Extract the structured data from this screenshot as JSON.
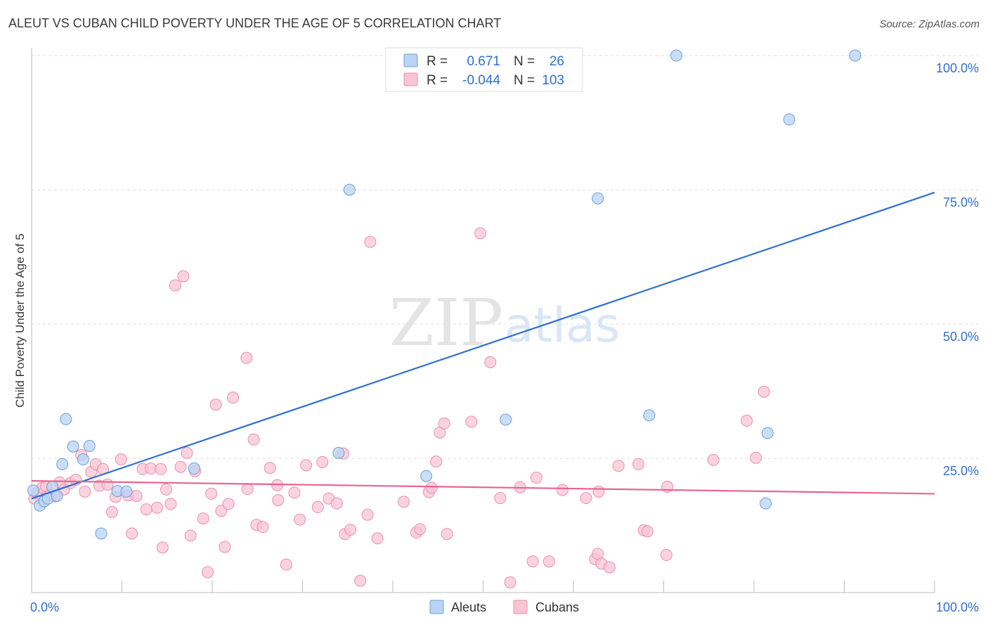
{
  "colors": {
    "aleut_fill": "#b8d3f4",
    "aleut_stroke": "#6b9fd8",
    "aleut_line": "#2e6fd1",
    "cuban_fill": "#f9c4d4",
    "cuban_stroke": "#eb8faf",
    "cuban_line": "#e8648f",
    "value_text": "#2f6fd1",
    "grid": "#dddddd",
    "axis": "#bbbbbb",
    "title_text": "#3a3a3a",
    "watermark": "#e6e6e6",
    "watermark_accent": "#d9e6f6"
  },
  "chart_data": {
    "type": "scatter",
    "title": "ALEUT VS CUBAN CHILD POVERTY UNDER THE AGE OF 5 CORRELATION CHART",
    "source": "Source: ZipAtlas.com",
    "xlabel": "",
    "ylabel": "Child Poverty Under the Age of 5",
    "xlim": [
      0,
      100
    ],
    "ylim": [
      0,
      100
    ],
    "x_tick_labels": [
      "0.0%",
      "100.0%"
    ],
    "y_ticks": [
      25,
      50,
      75,
      100
    ],
    "y_tick_labels": [
      "25.0%",
      "50.0%",
      "75.0%",
      "100.0%"
    ],
    "grid": true,
    "watermark": {
      "zip": "ZIP",
      "atlas": "atlas"
    },
    "legend": {
      "placement": "top-center",
      "rows": [
        {
          "series": "Aleuts",
          "r_label": "R =",
          "r_value": " 0.671",
          "n_label": "N =",
          "n_value": "26"
        },
        {
          "series": "Cubans",
          "r_label": "R =",
          "r_value": "-0.044",
          "n_label": "N =",
          "n_value": "103"
        }
      ]
    },
    "bottom_legend": [
      "Aleuts",
      "Cubans"
    ],
    "series": [
      {
        "name": "Aleuts",
        "r": 0.671,
        "n": 26,
        "trend": {
          "x": [
            0,
            100
          ],
          "y": [
            17.5,
            74.5
          ]
        },
        "points": [
          {
            "x": 0.2,
            "y": 19.0
          },
          {
            "x": 0.9,
            "y": 16.2
          },
          {
            "x": 1.4,
            "y": 17.0
          },
          {
            "x": 1.8,
            "y": 17.5
          },
          {
            "x": 2.3,
            "y": 19.7
          },
          {
            "x": 2.8,
            "y": 18.0
          },
          {
            "x": 3.4,
            "y": 23.9
          },
          {
            "x": 3.8,
            "y": 32.3
          },
          {
            "x": 4.6,
            "y": 27.2
          },
          {
            "x": 5.7,
            "y": 24.8
          },
          {
            "x": 6.4,
            "y": 27.3
          },
          {
            "x": 7.7,
            "y": 11.0
          },
          {
            "x": 9.5,
            "y": 18.9
          },
          {
            "x": 10.5,
            "y": 18.8
          },
          {
            "x": 18.0,
            "y": 23.1
          },
          {
            "x": 35.2,
            "y": 75.0
          },
          {
            "x": 34.0,
            "y": 26.0
          },
          {
            "x": 43.7,
            "y": 21.7
          },
          {
            "x": 52.5,
            "y": 32.2
          },
          {
            "x": 62.7,
            "y": 73.4
          },
          {
            "x": 68.4,
            "y": 33.0
          },
          {
            "x": 71.4,
            "y": 100.0
          },
          {
            "x": 83.9,
            "y": 88.1
          },
          {
            "x": 81.3,
            "y": 16.6
          },
          {
            "x": 91.2,
            "y": 100.0
          },
          {
            "x": 81.5,
            "y": 29.7
          }
        ]
      },
      {
        "name": "Cubans",
        "r": -0.044,
        "n": 103,
        "trend": {
          "x": [
            0,
            100
          ],
          "y": [
            20.8,
            18.4
          ]
        },
        "points": [
          {
            "x": 0.3,
            "y": 17.5
          },
          {
            "x": 0.6,
            "y": 18.5
          },
          {
            "x": 1.2,
            "y": 19.5
          },
          {
            "x": 1.6,
            "y": 19.8
          },
          {
            "x": 2.1,
            "y": 18.2
          },
          {
            "x": 2.6,
            "y": 17.9
          },
          {
            "x": 3.1,
            "y": 20.5
          },
          {
            "x": 3.6,
            "y": 19.2
          },
          {
            "x": 4.3,
            "y": 20.4
          },
          {
            "x": 4.9,
            "y": 21.0
          },
          {
            "x": 5.5,
            "y": 25.6
          },
          {
            "x": 5.9,
            "y": 18.8
          },
          {
            "x": 6.6,
            "y": 22.5
          },
          {
            "x": 7.1,
            "y": 23.9
          },
          {
            "x": 7.5,
            "y": 19.9
          },
          {
            "x": 7.9,
            "y": 23.0
          },
          {
            "x": 8.4,
            "y": 20.1
          },
          {
            "x": 8.9,
            "y": 15.0
          },
          {
            "x": 9.3,
            "y": 17.8
          },
          {
            "x": 9.9,
            "y": 24.8
          },
          {
            "x": 10.7,
            "y": 18.1
          },
          {
            "x": 11.1,
            "y": 11.0
          },
          {
            "x": 11.6,
            "y": 18.0
          },
          {
            "x": 12.3,
            "y": 23.0
          },
          {
            "x": 12.7,
            "y": 15.5
          },
          {
            "x": 13.2,
            "y": 23.1
          },
          {
            "x": 13.9,
            "y": 15.8
          },
          {
            "x": 14.3,
            "y": 23.0
          },
          {
            "x": 14.5,
            "y": 8.4
          },
          {
            "x": 14.9,
            "y": 19.2
          },
          {
            "x": 15.4,
            "y": 16.5
          },
          {
            "x": 15.9,
            "y": 57.2
          },
          {
            "x": 16.5,
            "y": 23.4
          },
          {
            "x": 16.8,
            "y": 58.9
          },
          {
            "x": 17.2,
            "y": 26.0
          },
          {
            "x": 17.6,
            "y": 10.6
          },
          {
            "x": 18.1,
            "y": 22.6
          },
          {
            "x": 19.0,
            "y": 13.8
          },
          {
            "x": 19.5,
            "y": 3.8
          },
          {
            "x": 19.9,
            "y": 18.4
          },
          {
            "x": 20.4,
            "y": 35.0
          },
          {
            "x": 21.0,
            "y": 15.2
          },
          {
            "x": 21.4,
            "y": 8.5
          },
          {
            "x": 21.8,
            "y": 16.5
          },
          {
            "x": 22.3,
            "y": 36.3
          },
          {
            "x": 23.8,
            "y": 43.7
          },
          {
            "x": 23.9,
            "y": 19.3
          },
          {
            "x": 24.6,
            "y": 28.5
          },
          {
            "x": 24.9,
            "y": 12.6
          },
          {
            "x": 25.6,
            "y": 12.2
          },
          {
            "x": 26.4,
            "y": 23.2
          },
          {
            "x": 27.2,
            "y": 20.0
          },
          {
            "x": 27.3,
            "y": 17.2
          },
          {
            "x": 28.2,
            "y": 5.2
          },
          {
            "x": 29.1,
            "y": 18.6
          },
          {
            "x": 29.7,
            "y": 13.6
          },
          {
            "x": 30.4,
            "y": 23.7
          },
          {
            "x": 31.7,
            "y": 15.9
          },
          {
            "x": 32.2,
            "y": 24.3
          },
          {
            "x": 32.9,
            "y": 17.5
          },
          {
            "x": 33.8,
            "y": 16.6
          },
          {
            "x": 34.5,
            "y": 25.9
          },
          {
            "x": 34.7,
            "y": 10.9
          },
          {
            "x": 35.3,
            "y": 11.7
          },
          {
            "x": 36.4,
            "y": 2.2
          },
          {
            "x": 37.2,
            "y": 14.5
          },
          {
            "x": 37.5,
            "y": 65.3
          },
          {
            "x": 38.3,
            "y": 10.1
          },
          {
            "x": 41.2,
            "y": 16.9
          },
          {
            "x": 42.6,
            "y": 11.2
          },
          {
            "x": 43.0,
            "y": 11.8
          },
          {
            "x": 44.0,
            "y": 18.7
          },
          {
            "x": 44.3,
            "y": 19.5
          },
          {
            "x": 44.8,
            "y": 24.4
          },
          {
            "x": 45.2,
            "y": 29.8
          },
          {
            "x": 45.7,
            "y": 31.5
          },
          {
            "x": 46.0,
            "y": 10.9
          },
          {
            "x": 48.7,
            "y": 31.8
          },
          {
            "x": 49.7,
            "y": 66.9
          },
          {
            "x": 50.8,
            "y": 42.9
          },
          {
            "x": 51.9,
            "y": 17.6
          },
          {
            "x": 53.0,
            "y": 1.9
          },
          {
            "x": 54.1,
            "y": 19.6
          },
          {
            "x": 55.5,
            "y": 5.8
          },
          {
            "x": 55.9,
            "y": 21.4
          },
          {
            "x": 57.3,
            "y": 5.8
          },
          {
            "x": 58.8,
            "y": 19.1
          },
          {
            "x": 61.4,
            "y": 17.6
          },
          {
            "x": 62.4,
            "y": 6.2
          },
          {
            "x": 62.7,
            "y": 7.2
          },
          {
            "x": 62.8,
            "y": 18.8
          },
          {
            "x": 63.1,
            "y": 5.4
          },
          {
            "x": 64.0,
            "y": 4.7
          },
          {
            "x": 65.0,
            "y": 23.6
          },
          {
            "x": 67.2,
            "y": 23.9
          },
          {
            "x": 67.8,
            "y": 11.6
          },
          {
            "x": 68.2,
            "y": 11.4
          },
          {
            "x": 70.3,
            "y": 7.0
          },
          {
            "x": 70.4,
            "y": 19.7
          },
          {
            "x": 75.5,
            "y": 24.7
          },
          {
            "x": 79.2,
            "y": 32.0
          },
          {
            "x": 80.2,
            "y": 25.1
          },
          {
            "x": 81.1,
            "y": 37.4
          }
        ]
      }
    ]
  }
}
